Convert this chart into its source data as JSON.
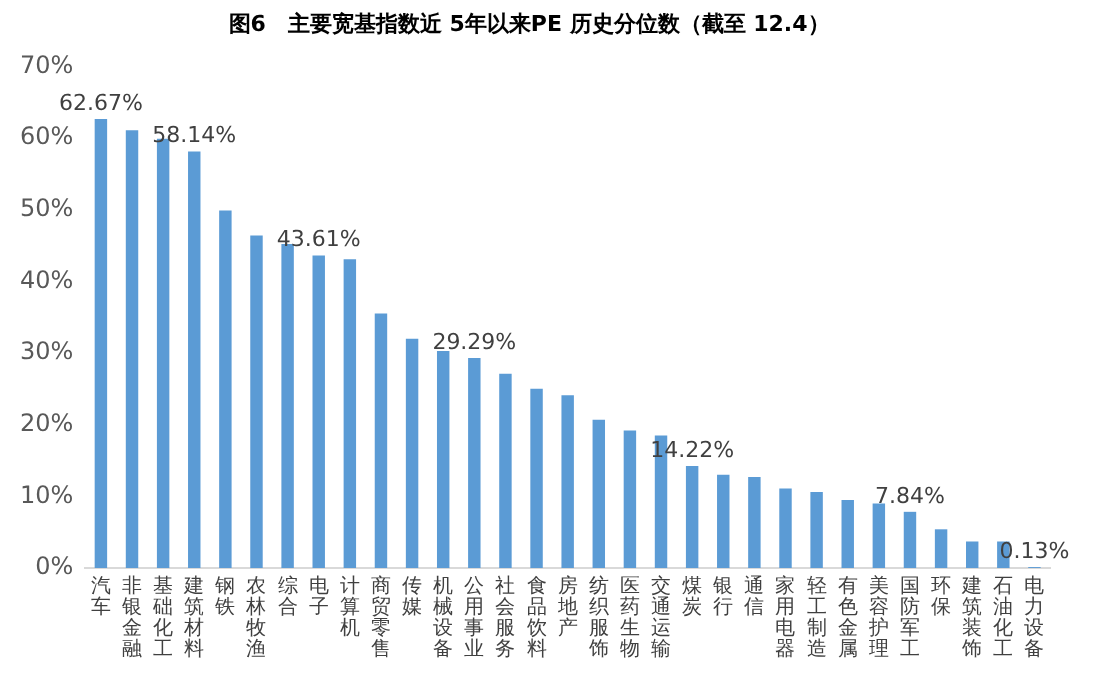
{
  "chart_data": {
    "type": "bar",
    "title": "图6　主要宽基指数近 5年以来PE 历史分位数（截至 12.4）",
    "categories": [
      "汽车",
      "非银金融",
      "基础化工",
      "建筑材料",
      "钢铁",
      "农林牧渔",
      "综合",
      "电子",
      "计算机",
      "商贸零售",
      "传媒",
      "机械设备",
      "公用事业",
      "社会服务",
      "食品饮料",
      "房地产",
      "纺织服饰",
      "医药生物",
      "交通运输",
      "煤炭",
      "银行",
      "通信",
      "家用电器",
      "轻工制造",
      "有色金属",
      "美容护理",
      "国防军工",
      "环保",
      "建筑装饰",
      "石油化工",
      "电力设备"
    ],
    "values": [
      62.67,
      61.1,
      59.9,
      58.14,
      49.9,
      46.4,
      45.2,
      43.61,
      43.1,
      35.5,
      32.0,
      30.3,
      29.29,
      27.1,
      25.0,
      24.1,
      20.7,
      19.2,
      18.5,
      14.22,
      13.0,
      12.7,
      11.1,
      10.6,
      9.5,
      9.0,
      7.84,
      5.4,
      3.7,
      3.7,
      0.13
    ],
    "value_labels": [
      "62.67%",
      null,
      null,
      "58.14%",
      null,
      null,
      null,
      "43.61%",
      null,
      null,
      null,
      null,
      "29.29%",
      null,
      null,
      null,
      null,
      null,
      null,
      "14.22%",
      null,
      null,
      null,
      null,
      null,
      null,
      "7.84%",
      null,
      null,
      null,
      "0.13%"
    ],
    "color": "#5b9bd5",
    "ylim": [
      0,
      70
    ],
    "yticks": [
      {
        "value": 0,
        "label": "0%"
      },
      {
        "value": 10,
        "label": "10%"
      },
      {
        "value": 20,
        "label": "20%"
      },
      {
        "value": 30,
        "label": "30%"
      },
      {
        "value": 40,
        "label": "40%"
      },
      {
        "value": 50,
        "label": "50%"
      },
      {
        "value": 60,
        "label": "60%"
      },
      {
        "value": 70,
        "label": "70%"
      }
    ],
    "grid": false,
    "legend": false
  }
}
